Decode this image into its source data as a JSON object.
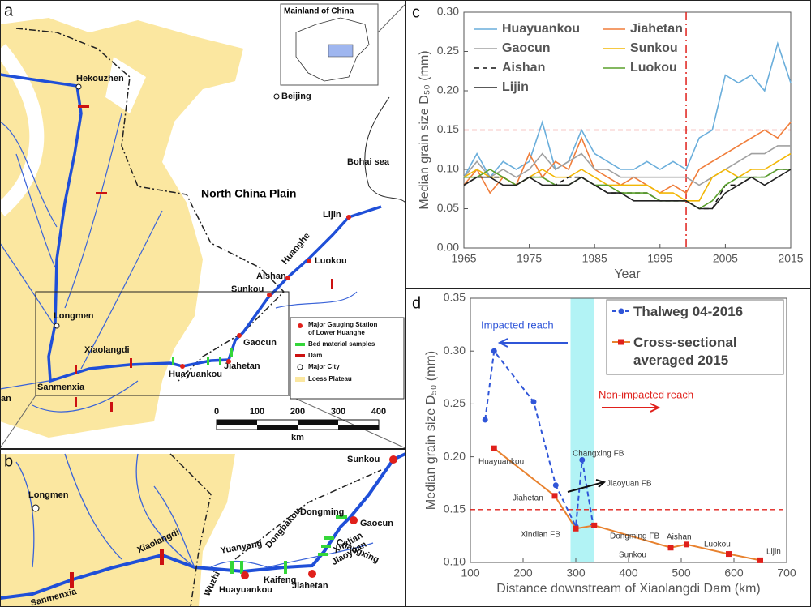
{
  "panel_labels": [
    "a",
    "b",
    "c",
    "d"
  ],
  "map_a": {
    "inset_title": "Mainland of China",
    "labels": [
      "Beijing",
      "Bohai sea",
      "North China Plain",
      "Hekouzhen",
      "Longmen",
      "Xiaolangdi",
      "Sanmenxia",
      "Huayuankou",
      "Jiahetan",
      "Gaocun",
      "Sunkou",
      "Aishan",
      "Huanghe",
      "Luokou",
      "Lijin",
      "an"
    ],
    "legend": [
      [
        "Major Gauging Station",
        "of Lower Huanghe"
      ],
      "Bed material samples",
      "Dam",
      "Major City",
      "Loess Plateau"
    ],
    "scale": {
      "ticks": [
        0,
        100,
        200,
        300,
        400
      ],
      "unit": "km"
    }
  },
  "map_b": {
    "labels": [
      "Sunkou",
      "Longmen",
      "Dongming",
      "Gaocun",
      "Changxing",
      "Xindian",
      "Jiaoyuan",
      "Dongbakou",
      "Xiaolangdi",
      "Yuanyang",
      "Wuzhi",
      "Huayuankou",
      "Kaifeng",
      "Jiahetan",
      "Sanmenxia"
    ]
  },
  "chart_data": [
    {
      "type": "line",
      "x_label": "Year",
      "y_label": "Median grain size D₅₀ (mm)",
      "x": [
        1965,
        1967,
        1969,
        1971,
        1973,
        1975,
        1977,
        1979,
        1981,
        1983,
        1985,
        1987,
        1989,
        1991,
        1993,
        1995,
        1997,
        1999,
        2001,
        2003,
        2005,
        2007,
        2009,
        2011,
        2013,
        2015
      ],
      "xlim": [
        1965,
        2015
      ],
      "xticks": [
        1965,
        1975,
        1985,
        1995,
        2005,
        2015
      ],
      "ylim": [
        0,
        0.3
      ],
      "yticks": [
        {
          "value": 0,
          "label": "0.00"
        },
        {
          "value": 0.05,
          "label": "0.05"
        },
        {
          "value": 0.1,
          "label": "0.10"
        },
        {
          "value": 0.15,
          "label": "0.15"
        },
        {
          "value": 0.2,
          "label": "0.20"
        },
        {
          "value": 0.25,
          "label": "0.25"
        },
        {
          "value": 0.3,
          "label": "0.30"
        }
      ],
      "hline": 0.15,
      "vline": 1999,
      "series": [
        {
          "name": "Huayuankou",
          "color": "#6aaedb",
          "style": "solid",
          "values": [
            0.09,
            0.12,
            0.09,
            0.11,
            0.1,
            0.11,
            0.16,
            0.1,
            0.11,
            0.15,
            0.12,
            0.11,
            0.1,
            0.1,
            0.11,
            0.1,
            0.11,
            0.1,
            0.14,
            0.15,
            0.22,
            0.21,
            0.22,
            0.2,
            0.26,
            0.21
          ]
        },
        {
          "name": "Jiahetan",
          "color": "#f07d3a",
          "style": "solid",
          "values": [
            0.08,
            0.1,
            0.07,
            0.09,
            0.08,
            0.12,
            0.09,
            0.11,
            0.1,
            0.14,
            0.1,
            0.09,
            0.08,
            0.09,
            0.08,
            0.07,
            0.08,
            0.07,
            0.1,
            0.11,
            0.12,
            0.13,
            0.14,
            0.15,
            0.14,
            0.16
          ]
        },
        {
          "name": "Gaocun",
          "color": "#a0a0a0",
          "style": "solid",
          "values": [
            0.09,
            0.11,
            0.09,
            0.1,
            0.09,
            0.1,
            0.12,
            0.1,
            0.11,
            0.12,
            0.1,
            0.1,
            0.09,
            0.09,
            0.09,
            0.09,
            0.09,
            0.09,
            0.08,
            0.09,
            0.1,
            0.11,
            0.12,
            0.12,
            0.13,
            0.13
          ]
        },
        {
          "name": "Sunkou",
          "color": "#f2b705",
          "style": "solid",
          "values": [
            0.09,
            0.1,
            0.09,
            0.09,
            0.08,
            0.09,
            0.1,
            0.09,
            0.09,
            0.1,
            0.09,
            0.08,
            0.08,
            0.08,
            0.08,
            0.07,
            0.07,
            0.06,
            0.06,
            0.09,
            0.1,
            0.09,
            0.1,
            0.1,
            0.11,
            0.12
          ]
        },
        {
          "name": "Aishan",
          "color": "#111111",
          "style": "dashed",
          "values": [
            0.08,
            0.09,
            0.09,
            0.09,
            0.08,
            0.09,
            0.09,
            0.08,
            0.09,
            0.09,
            0.08,
            0.07,
            0.07,
            0.07,
            0.07,
            0.06,
            0.06,
            0.06,
            0.05,
            0.05,
            0.08,
            0.08,
            0.09,
            0.09,
            0.1,
            0.1
          ]
        },
        {
          "name": "Luokou",
          "color": "#5aa02c",
          "style": "solid",
          "values": [
            0.09,
            0.09,
            0.1,
            0.09,
            0.08,
            0.09,
            0.09,
            0.08,
            0.08,
            0.09,
            0.08,
            0.08,
            0.07,
            0.07,
            0.07,
            0.06,
            0.06,
            0.06,
            0.05,
            0.06,
            0.08,
            0.09,
            0.09,
            0.09,
            0.1,
            0.1
          ]
        },
        {
          "name": "Lijin",
          "color": "#222222",
          "style": "solid",
          "values": [
            0.08,
            0.09,
            0.09,
            0.08,
            0.08,
            0.09,
            0.08,
            0.08,
            0.08,
            0.09,
            0.08,
            0.07,
            0.07,
            0.06,
            0.06,
            0.06,
            0.06,
            0.06,
            0.05,
            0.05,
            0.07,
            0.08,
            0.09,
            0.08,
            0.09,
            0.1
          ]
        }
      ]
    },
    {
      "type": "scatter",
      "x_label": "Distance downstream of Xiaolangdi Dam (km)",
      "y_label": "Median grain size D₅₀ (mm)",
      "xlim": [
        100,
        700
      ],
      "xticks": [
        100,
        200,
        300,
        400,
        500,
        600,
        700
      ],
      "ylim": [
        0.1,
        0.35
      ],
      "yticks": [
        {
          "value": 0.1,
          "label": "0.10"
        },
        {
          "value": 0.15,
          "label": "0.15"
        },
        {
          "value": 0.2,
          "label": "0.20"
        },
        {
          "value": 0.25,
          "label": "0.25"
        },
        {
          "value": 0.3,
          "label": "0.30"
        },
        {
          "value": 0.35,
          "label": "0.35"
        }
      ],
      "hline": 0.15,
      "shaded_xrange": [
        290,
        335
      ],
      "annotations": [
        "Impacted reach",
        "Non-impacted reach"
      ],
      "point_labels": [
        "Huayuankou",
        "Jiahetan",
        "Xindian FB",
        "Changxing FB",
        "Jiaoyuan FB",
        "Dongming FB",
        "Sunkou",
        "Aishan",
        "Luokou",
        "Lijin"
      ],
      "series": [
        {
          "name": "Thalweg 04-2016",
          "color": "#2f55d8",
          "marker_color": "#2f55d8",
          "style": "dashed",
          "marker": "circle",
          "x": [
            128,
            145,
            220,
            262,
            300,
            312,
            333
          ],
          "values": [
            0.235,
            0.3,
            0.252,
            0.173,
            0.134,
            0.197,
            0.135
          ]
        },
        {
          "name": "Cross-sectional averaged 2015",
          "color": "#e8822f",
          "marker_color": "#e0201b",
          "style": "solid",
          "marker": "square",
          "x": [
            145,
            260,
            300,
            335,
            480,
            510,
            590,
            650
          ],
          "values": [
            0.208,
            0.163,
            0.132,
            0.135,
            0.114,
            0.117,
            0.108,
            0.102
          ]
        }
      ]
    }
  ]
}
